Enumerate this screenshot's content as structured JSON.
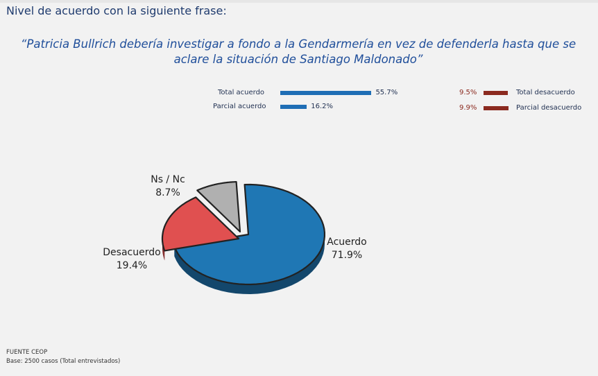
{
  "title": "Nivel de acuerdo con la siguiente frase:",
  "quote_line1": "“Patricia Bullrich debería investigar a fondo a la Gendarmería en vez de defenderla hasta que se",
  "quote_line2": "aclare la situación de Santiago Maldonado”",
  "colors": {
    "agree": "#1f77b4",
    "disagree": "#e05050",
    "nsnc": "#b0b0b0",
    "agree_bar": "#1f6eb5",
    "disagree_bar": "#8b2a1f",
    "title": "#1f3b6e"
  },
  "footer": {
    "source": "FUENTE CEOP",
    "base": "Base: 2500 casos (Total entrevistados)"
  },
  "chart_data": [
    {
      "type": "bar",
      "orientation": "horizontal",
      "categories": [
        "Total acuerdo",
        "Parcial acuerdo"
      ],
      "values": [
        55.7,
        16.2
      ],
      "value_labels": [
        "55.7%",
        "16.2%"
      ],
      "color": "#1f6eb5"
    },
    {
      "type": "bar",
      "orientation": "horizontal",
      "categories": [
        "Total desacuerdo",
        "Parcial desacuerdo"
      ],
      "values": [
        9.5,
        9.9
      ],
      "value_labels": [
        "9.5%",
        "9.9%"
      ],
      "color": "#8b2a1f"
    },
    {
      "type": "pie",
      "slices": [
        {
          "label": "Acuerdo",
          "value": 71.9,
          "value_label": "71.9%",
          "color": "#1f77b4"
        },
        {
          "label": "Desacuerdo",
          "value": 19.4,
          "value_label": "19.4%",
          "color": "#e05050"
        },
        {
          "label": "Ns / Nc",
          "value": 8.7,
          "value_label": "8.7%",
          "color": "#b0b0b0"
        }
      ]
    }
  ]
}
